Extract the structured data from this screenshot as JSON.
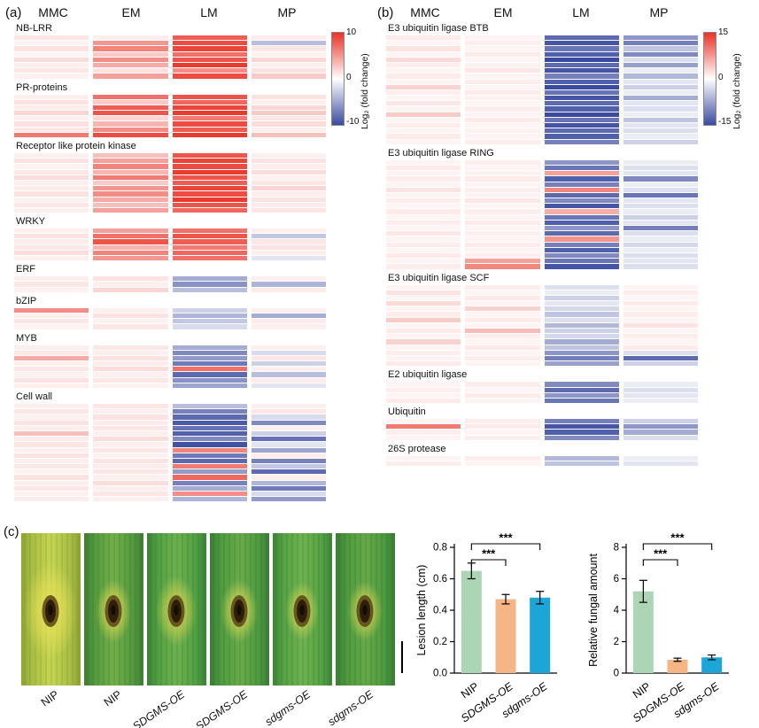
{
  "figure": {
    "panel_a_label": "(a)",
    "panel_b_label": "(b)",
    "panel_c_label": "(c)"
  },
  "colors": {
    "heat_positive": "#e93226",
    "heat_negative": "#3b4ba0",
    "bar_green": "#abd5b5",
    "bar_orange": "#f5b585",
    "bar_blue": "#1ea5d8"
  },
  "chart_data": [
    {
      "id": "defense_gene_heatmap",
      "type": "heatmap",
      "panel": "a",
      "columns": [
        "MMC",
        "EM",
        "LM",
        "MP"
      ],
      "colorbar": {
        "ticks": [
          "10",
          "0",
          "-10"
        ],
        "label": "Log₂ (fold change)",
        "vmax": 10
      },
      "sections": [
        {
          "title": "NB-LRR",
          "rows": [
            [
              0.8,
              0.5,
              7.5,
              0.6
            ],
            [
              0.4,
              4.5,
              8.5,
              -3.0
            ],
            [
              1.0,
              5.5,
              9.0,
              0.8
            ],
            [
              0.3,
              2.0,
              6.5,
              0.4
            ],
            [
              1.2,
              5.0,
              8.0,
              1.5
            ],
            [
              0.5,
              3.5,
              9.5,
              0.5
            ],
            [
              0.8,
              1.0,
              5.0,
              1.0
            ],
            [
              0.4,
              4.0,
              8.5,
              2.0
            ]
          ]
        },
        {
          "title": "PR-proteins",
          "rows": [
            [
              0.5,
              6.5,
              8.0,
              1.0
            ],
            [
              1.0,
              2.0,
              7.0,
              0.5
            ],
            [
              0.6,
              7.5,
              9.0,
              1.5
            ],
            [
              1.5,
              8.0,
              9.5,
              2.0
            ],
            [
              0.5,
              1.5,
              6.0,
              0.8
            ],
            [
              1.0,
              3.0,
              8.5,
              1.2
            ],
            [
              0.8,
              5.0,
              7.5,
              0.5
            ],
            [
              6.0,
              8.5,
              9.5,
              2.5
            ]
          ]
        },
        {
          "title": "Receptor like protein kinase",
          "rows": [
            [
              0.5,
              2.5,
              8.0,
              0.5
            ],
            [
              1.0,
              4.0,
              9.0,
              1.0
            ],
            [
              0.4,
              5.5,
              8.5,
              0.6
            ],
            [
              0.8,
              3.0,
              9.5,
              1.2
            ],
            [
              1.2,
              6.0,
              8.0,
              0.4
            ],
            [
              0.5,
              2.0,
              7.5,
              0.8
            ],
            [
              0.6,
              4.5,
              9.0,
              1.5
            ],
            [
              1.0,
              5.0,
              8.5,
              0.5
            ],
            [
              0.4,
              3.5,
              9.5,
              1.0
            ],
            [
              0.8,
              2.5,
              8.0,
              0.6
            ],
            [
              0.5,
              4.0,
              7.0,
              0.9
            ]
          ]
        },
        {
          "title": "WRKY",
          "rows": [
            [
              0.5,
              4.0,
              6.5,
              0.5
            ],
            [
              1.0,
              6.5,
              8.0,
              -2.5
            ],
            [
              0.6,
              8.0,
              7.5,
              0.8
            ],
            [
              0.8,
              3.0,
              6.0,
              1.0
            ],
            [
              1.2,
              5.5,
              7.0,
              0.5
            ],
            [
              0.5,
              4.5,
              6.5,
              -1.0
            ]
          ]
        },
        {
          "title": "ERF",
          "rows": [
            [
              0.5,
              1.0,
              -4.0,
              0.5
            ],
            [
              0.8,
              0.5,
              -5.5,
              -3.5
            ],
            [
              0.4,
              1.5,
              -3.0,
              0.6
            ]
          ]
        },
        {
          "title": "bZIP",
          "rows": [
            [
              5.0,
              0.5,
              -2.0,
              0.5
            ],
            [
              0.5,
              1.0,
              -3.5,
              -4.0
            ],
            [
              0.8,
              0.4,
              -2.5,
              0.6
            ],
            [
              0.4,
              0.8,
              -1.5,
              0.5
            ]
          ]
        },
        {
          "title": "MYB",
          "rows": [
            [
              0.5,
              0.8,
              -4.0,
              0.5
            ],
            [
              0.8,
              0.5,
              -6.0,
              -1.5
            ],
            [
              3.5,
              1.0,
              -5.0,
              0.8
            ],
            [
              0.5,
              0.6,
              -7.0,
              -2.0
            ],
            [
              0.8,
              1.2,
              6.5,
              0.5
            ],
            [
              0.4,
              0.5,
              -8.0,
              -3.0
            ],
            [
              1.0,
              0.8,
              -5.5,
              0.6
            ],
            [
              0.5,
              0.4,
              -4.5,
              -1.0
            ]
          ]
        },
        {
          "title": "Cell wall",
          "rows": [
            [
              0.5,
              0.8,
              -3.0,
              0.5
            ],
            [
              0.8,
              0.5,
              -6.5,
              0.8
            ],
            [
              0.4,
              1.0,
              -8.0,
              -1.5
            ],
            [
              1.0,
              0.6,
              -9.0,
              -6.0
            ],
            [
              0.5,
              0.8,
              -7.5,
              0.5
            ],
            [
              2.5,
              0.5,
              -8.5,
              -2.0
            ],
            [
              0.6,
              1.2,
              -6.0,
              -7.5
            ],
            [
              0.8,
              0.5,
              -9.5,
              -1.0
            ],
            [
              0.5,
              0.8,
              5.5,
              -4.5
            ],
            [
              1.0,
              0.4,
              -7.0,
              0.6
            ],
            [
              0.5,
              1.0,
              -8.0,
              -6.5
            ],
            [
              0.8,
              0.6,
              6.0,
              -2.5
            ],
            [
              0.4,
              0.8,
              -5.0,
              -8.0
            ],
            [
              1.0,
              0.5,
              7.0,
              0.5
            ],
            [
              0.5,
              1.2,
              -6.5,
              -3.5
            ],
            [
              0.8,
              0.5,
              -4.0,
              -7.0
            ],
            [
              0.4,
              0.8,
              5.0,
              -1.5
            ],
            [
              0.6,
              0.5,
              -3.5,
              -5.0
            ]
          ]
        }
      ]
    },
    {
      "id": "ubiquitin_pathway_heatmap",
      "type": "heatmap",
      "panel": "b",
      "columns": [
        "MMC",
        "EM",
        "LM",
        "MP"
      ],
      "colorbar": {
        "ticks": [
          "15",
          "0",
          "-15"
        ],
        "label": "Log₂ (fold change)",
        "vmax": 15
      },
      "sections": [
        {
          "title": "E3 ubiquitin ligase BTB",
          "rows": [
            [
              1.0,
              0.5,
              -12,
              -8
            ],
            [
              0.5,
              0.8,
              -14,
              -10
            ],
            [
              1.5,
              0.5,
              -11,
              -4
            ],
            [
              0.5,
              1.0,
              -13,
              -9
            ],
            [
              2.0,
              0.5,
              -15,
              -2
            ],
            [
              0.8,
              0.6,
              -12,
              -7
            ],
            [
              0.5,
              1.2,
              -14,
              -1
            ],
            [
              1.0,
              0.5,
              -10,
              -5
            ],
            [
              0.5,
              0.8,
              -13,
              -1.5
            ],
            [
              2.5,
              0.5,
              -15,
              -3
            ],
            [
              0.8,
              1.0,
              -11,
              -1
            ],
            [
              0.5,
              0.6,
              -14,
              -6
            ],
            [
              1.2,
              0.5,
              -12,
              -1.5
            ],
            [
              0.5,
              0.8,
              -13,
              -2
            ],
            [
              3.0,
              0.5,
              -15,
              -1
            ],
            [
              0.5,
              1.0,
              -11,
              -4
            ],
            [
              0.8,
              0.5,
              -14,
              -1.5
            ],
            [
              0.5,
              0.6,
              -12,
              -2
            ],
            [
              1.0,
              0.5,
              -13,
              -1
            ],
            [
              0.5,
              0.8,
              -10,
              -3
            ]
          ]
        },
        {
          "title": "E3 ubiquitin ligase RING",
          "rows": [
            [
              0.5,
              0.8,
              -8,
              -1
            ],
            [
              1.0,
              0.5,
              -11,
              -2
            ],
            [
              0.5,
              0.6,
              6,
              -1.5
            ],
            [
              0.8,
              1.0,
              -13,
              -9
            ],
            [
              0.5,
              0.5,
              -10,
              -1
            ],
            [
              1.5,
              0.8,
              8,
              -2
            ],
            [
              0.5,
              0.5,
              -12,
              -11
            ],
            [
              0.8,
              1.2,
              -9,
              -1.5
            ],
            [
              0.5,
              0.5,
              -14,
              -2
            ],
            [
              1.0,
              0.8,
              5,
              -1
            ],
            [
              0.5,
              0.5,
              -11,
              -3
            ],
            [
              0.8,
              1.0,
              -13,
              -1.5
            ],
            [
              0.5,
              0.5,
              -8,
              -10
            ],
            [
              1.2,
              0.8,
              -12,
              -2
            ],
            [
              0.5,
              0.5,
              7,
              -1
            ],
            [
              0.8,
              1.0,
              -10,
              -2.5
            ],
            [
              0.5,
              0.5,
              -13,
              -1
            ],
            [
              1.0,
              0.8,
              -9,
              -2
            ],
            [
              0.5,
              6.0,
              -11,
              -1.5
            ],
            [
              0.8,
              8.0,
              -14,
              -2
            ]
          ]
        },
        {
          "title": "E3 ubiquitin ligase SCF",
          "rows": [
            [
              0.5,
              0.8,
              -2,
              0.5
            ],
            [
              1.5,
              0.5,
              -1,
              0.8
            ],
            [
              0.5,
              1.0,
              -3,
              0.5
            ],
            [
              2.0,
              0.5,
              -1.5,
              1.0
            ],
            [
              0.5,
              2.5,
              -2.5,
              0.5
            ],
            [
              0.8,
              0.5,
              -4,
              0.8
            ],
            [
              3.0,
              1.0,
              -2,
              0.5
            ],
            [
              0.5,
              0.5,
              -5,
              1.5
            ],
            [
              1.0,
              4.0,
              -3,
              0.5
            ],
            [
              0.5,
              0.8,
              -2.5,
              0.8
            ],
            [
              2.5,
              0.5,
              -6,
              0.5
            ],
            [
              0.5,
              1.0,
              -4,
              1.0
            ],
            [
              0.8,
              0.5,
              -8,
              -2
            ],
            [
              0.5,
              0.8,
              -10,
              -12
            ],
            [
              1.0,
              0.5,
              -7,
              -3
            ]
          ]
        },
        {
          "title": "E2 ubiquitin ligase",
          "rows": [
            [
              0.5,
              0.8,
              -9,
              -1
            ],
            [
              0.8,
              0.5,
              -12,
              -2
            ],
            [
              0.5,
              1.0,
              -8,
              -1.5
            ],
            [
              1.0,
              0.5,
              -11,
              -1
            ]
          ]
        },
        {
          "title": "Ubiquitin",
          "rows": [
            [
              0.5,
              0.8,
              -10,
              -3
            ],
            [
              9.0,
              1.0,
              -14,
              -8
            ],
            [
              0.8,
              0.5,
              -13,
              -6
            ],
            [
              0.5,
              0.8,
              -9,
              -2
            ]
          ]
        },
        {
          "title": "26S protease",
          "rows": [
            [
              0.5,
              0.8,
              -5,
              -1
            ],
            [
              0.8,
              0.5,
              -4,
              -1.5
            ]
          ]
        }
      ]
    },
    {
      "id": "lesion_length",
      "type": "bar",
      "ylabel": "Lesion length (cm)",
      "categories": [
        "NIP",
        "SDGMS-OE",
        "sdgms-OE"
      ],
      "italic_categories": [
        false,
        true,
        true
      ],
      "values": [
        0.65,
        0.47,
        0.48
      ],
      "errors": [
        0.05,
        0.03,
        0.04
      ],
      "bar_colors": [
        "#abd5b5",
        "#f5b585",
        "#1ea5d8"
      ],
      "ylim": [
        0,
        0.8
      ],
      "yticks": [
        "0.0",
        "0.2",
        "0.4",
        "0.6",
        "0.8"
      ],
      "significance": [
        {
          "a": 0,
          "b": 1,
          "label": "***",
          "level": 1
        },
        {
          "a": 0,
          "b": 2,
          "label": "***",
          "level": 2
        }
      ]
    },
    {
      "id": "relative_fungal_amount",
      "type": "bar",
      "ylabel": "Relative fungal amount",
      "categories": [
        "NIP",
        "SDGMS-OE",
        "sdgms-OE"
      ],
      "italic_categories": [
        false,
        true,
        true
      ],
      "values": [
        5.2,
        0.85,
        1.0
      ],
      "errors": [
        0.7,
        0.1,
        0.15
      ],
      "bar_colors": [
        "#abd5b5",
        "#f5b585",
        "#1ea5d8"
      ],
      "ylim": [
        0,
        8
      ],
      "yticks": [
        "0",
        "2",
        "4",
        "6",
        "8"
      ],
      "significance": [
        {
          "a": 0,
          "b": 1,
          "label": "***",
          "level": 1
        },
        {
          "a": 0,
          "b": 2,
          "label": "***",
          "level": 2
        }
      ]
    }
  ],
  "panel_c": {
    "leaves": [
      {
        "label": "NIP",
        "italic": false,
        "edge": "#8fa332",
        "base": "#a8be44",
        "light": "#c6d452",
        "vein": "#64832a",
        "halo": "#e9e257",
        "halo_rx": 30,
        "halo_ry": 55
      },
      {
        "label": "NIP",
        "italic": false,
        "edge": "#3f7f33",
        "base": "#549a3e",
        "light": "#73ae4b",
        "vein": "#2b5f26",
        "halo": "#dcd852",
        "halo_rx": 20,
        "halo_ry": 36
      },
      {
        "label": "SDGMS-OE",
        "italic": true,
        "edge": "#3c8338",
        "base": "#52a043",
        "light": "#6cb04f",
        "vein": "#2a6428",
        "halo": "#d2d452",
        "halo_rx": 23,
        "halo_ry": 40
      },
      {
        "label": "SDGMS-OE",
        "italic": true,
        "edge": "#3a7f35",
        "base": "#4f9a40",
        "light": "#68ab4b",
        "vein": "#295f26",
        "halo": "#d6d855",
        "halo_rx": 21,
        "halo_ry": 36
      },
      {
        "label": "sdgms-OE",
        "italic": true,
        "edge": "#3d8539",
        "base": "#55a244",
        "light": "#6fb250",
        "vein": "#2b6429",
        "halo": "#d4d654",
        "halo_rx": 19,
        "halo_ry": 33
      },
      {
        "label": "sdgms-OE",
        "italic": true,
        "edge": "#397e34",
        "base": "#4e993f",
        "light": "#66a94a",
        "vein": "#285e25",
        "halo": "#d2d453",
        "halo_rx": 20,
        "halo_ry": 34
      }
    ]
  }
}
